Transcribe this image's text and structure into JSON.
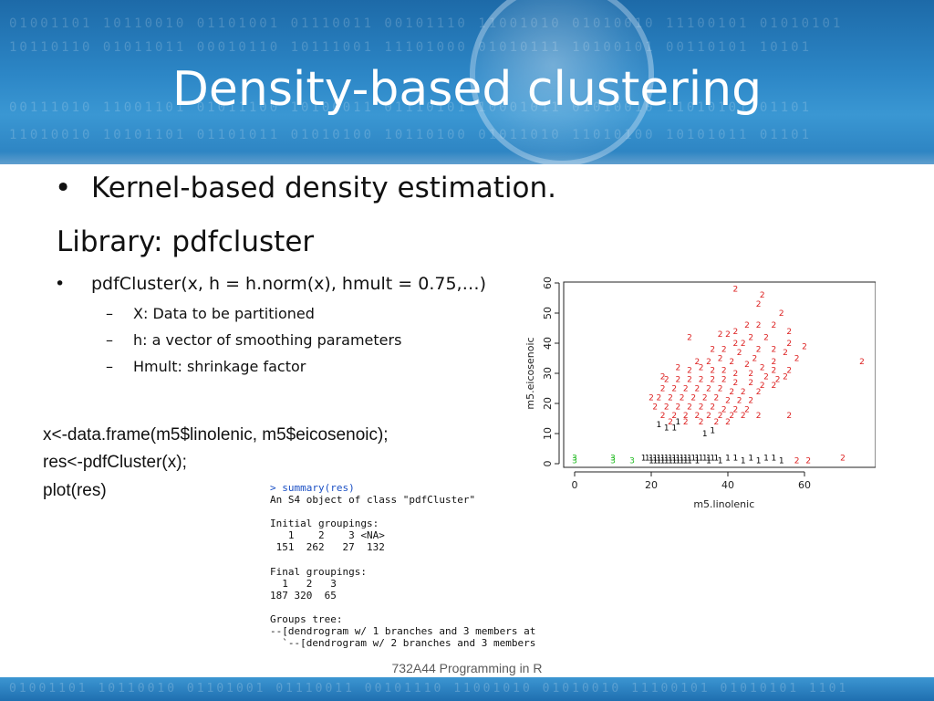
{
  "slide": {
    "title": "Density-based clustering",
    "bullets": {
      "kernel": "Kernel-based density estimation.",
      "library": "Library: pdfcluster",
      "function": "pdfCluster(x, h = h.norm(x), hmult = 0.75,…)",
      "sub_items": [
        "X: Data to be partitioned",
        "h: a vector of smoothing parameters",
        "Hmult: shrinkage factor"
      ]
    },
    "code_lines": [
      "x<-data.frame(m5$linolenic, m5$eicosenoic);",
      "res<-pdfCluster(x);",
      "plot(res)"
    ],
    "console_lines": [
      "> summary(res)",
      "An S4 object of class \"pdfCluster\"",
      "",
      "Initial groupings:",
      "   1    2    3 <NA>",
      " 151  262   27  132",
      "",
      "Final groupings:",
      "  1   2   3",
      "187 320  65",
      "",
      "Groups tree:",
      "--[dendrogram w/ 1 branches and 3 members at",
      "  `--[dendrogram w/ 2 branches and 3 members"
    ],
    "footer": "732A44 Programming in R",
    "bullet_symbol": "•",
    "dash_symbol": "–"
  },
  "chart_data": {
    "type": "scatter",
    "title": "",
    "xlabel": "m5.linolenic",
    "ylabel": "m5.eicosenoic",
    "xlim": [
      0,
      75
    ],
    "ylim": [
      0,
      60
    ],
    "xticks": [
      0,
      20,
      40,
      60
    ],
    "yticks": [
      0,
      10,
      20,
      30,
      40,
      50,
      60
    ],
    "grid": false,
    "series": [
      {
        "name": "1",
        "color": "#000000",
        "points": [
          [
            18,
            2
          ],
          [
            19,
            2
          ],
          [
            20,
            1
          ],
          [
            20,
            2
          ],
          [
            21,
            2
          ],
          [
            21,
            1
          ],
          [
            22,
            2
          ],
          [
            22,
            1
          ],
          [
            23,
            2
          ],
          [
            23,
            1
          ],
          [
            24,
            2
          ],
          [
            24,
            1
          ],
          [
            25,
            2
          ],
          [
            25,
            1
          ],
          [
            26,
            2
          ],
          [
            26,
            1
          ],
          [
            27,
            2
          ],
          [
            27,
            1
          ],
          [
            28,
            2
          ],
          [
            28,
            1
          ],
          [
            29,
            2
          ],
          [
            29,
            1
          ],
          [
            30,
            2
          ],
          [
            30,
            1
          ],
          [
            31,
            2
          ],
          [
            32,
            2
          ],
          [
            32,
            1
          ],
          [
            33,
            2
          ],
          [
            34,
            2
          ],
          [
            35,
            2
          ],
          [
            35,
            1
          ],
          [
            36,
            2
          ],
          [
            37,
            2
          ],
          [
            38,
            1
          ],
          [
            40,
            2
          ],
          [
            42,
            2
          ],
          [
            44,
            1
          ],
          [
            46,
            2
          ],
          [
            48,
            1
          ],
          [
            50,
            2
          ],
          [
            52,
            2
          ],
          [
            54,
            1
          ],
          [
            22,
            13
          ],
          [
            24,
            12
          ],
          [
            26,
            12
          ],
          [
            27,
            14
          ],
          [
            34,
            10
          ],
          [
            36,
            11
          ]
        ]
      },
      {
        "name": "2",
        "color": "#dd2222",
        "points": [
          [
            42,
            58
          ],
          [
            49,
            56
          ],
          [
            48,
            53
          ],
          [
            54,
            50
          ],
          [
            45,
            46
          ],
          [
            48,
            46
          ],
          [
            52,
            46
          ],
          [
            56,
            44
          ],
          [
            56,
            40
          ],
          [
            60,
            39
          ],
          [
            75,
            34
          ],
          [
            30,
            42
          ],
          [
            38,
            43
          ],
          [
            40,
            43
          ],
          [
            42,
            44
          ],
          [
            42,
            40
          ],
          [
            46,
            42
          ],
          [
            50,
            42
          ],
          [
            44,
            40
          ],
          [
            48,
            38
          ],
          [
            52,
            38
          ],
          [
            55,
            37
          ],
          [
            58,
            35
          ],
          [
            36,
            38
          ],
          [
            39,
            38
          ],
          [
            43,
            37
          ],
          [
            47,
            35
          ],
          [
            52,
            34
          ],
          [
            56,
            31
          ],
          [
            55,
            29
          ],
          [
            32,
            34
          ],
          [
            35,
            34
          ],
          [
            38,
            35
          ],
          [
            41,
            34
          ],
          [
            45,
            33
          ],
          [
            49,
            32
          ],
          [
            52,
            31
          ],
          [
            27,
            32
          ],
          [
            30,
            31
          ],
          [
            33,
            32
          ],
          [
            36,
            31
          ],
          [
            39,
            31
          ],
          [
            42,
            30
          ],
          [
            46,
            30
          ],
          [
            50,
            29
          ],
          [
            53,
            28
          ],
          [
            24,
            28
          ],
          [
            27,
            28
          ],
          [
            30,
            28
          ],
          [
            33,
            28
          ],
          [
            36,
            28
          ],
          [
            39,
            28
          ],
          [
            42,
            27
          ],
          [
            46,
            27
          ],
          [
            49,
            26
          ],
          [
            52,
            26
          ],
          [
            23,
            25
          ],
          [
            26,
            25
          ],
          [
            29,
            25
          ],
          [
            32,
            25
          ],
          [
            35,
            25
          ],
          [
            38,
            25
          ],
          [
            41,
            24
          ],
          [
            44,
            24
          ],
          [
            48,
            24
          ],
          [
            22,
            22
          ],
          [
            25,
            22
          ],
          [
            28,
            22
          ],
          [
            31,
            22
          ],
          [
            34,
            22
          ],
          [
            37,
            22
          ],
          [
            40,
            21
          ],
          [
            43,
            21
          ],
          [
            46,
            21
          ],
          [
            21,
            19
          ],
          [
            24,
            19
          ],
          [
            27,
            19
          ],
          [
            30,
            19
          ],
          [
            33,
            19
          ],
          [
            36,
            19
          ],
          [
            39,
            18
          ],
          [
            42,
            18
          ],
          [
            45,
            18
          ],
          [
            23,
            16
          ],
          [
            26,
            16
          ],
          [
            29,
            16
          ],
          [
            32,
            16
          ],
          [
            35,
            16
          ],
          [
            38,
            16
          ],
          [
            41,
            16
          ],
          [
            44,
            16
          ],
          [
            48,
            16
          ],
          [
            56,
            16
          ],
          [
            25,
            14
          ],
          [
            29,
            14
          ],
          [
            33,
            14
          ],
          [
            37,
            14
          ],
          [
            40,
            14
          ],
          [
            23,
            29
          ],
          [
            20,
            22
          ],
          [
            58,
            1
          ],
          [
            61,
            1
          ],
          [
            70,
            2
          ]
        ]
      },
      {
        "name": "3",
        "color": "#22bb22",
        "points": [
          [
            0,
            2
          ],
          [
            0,
            1
          ],
          [
            10,
            2
          ],
          [
            10,
            1
          ],
          [
            15,
            1
          ]
        ]
      }
    ]
  }
}
